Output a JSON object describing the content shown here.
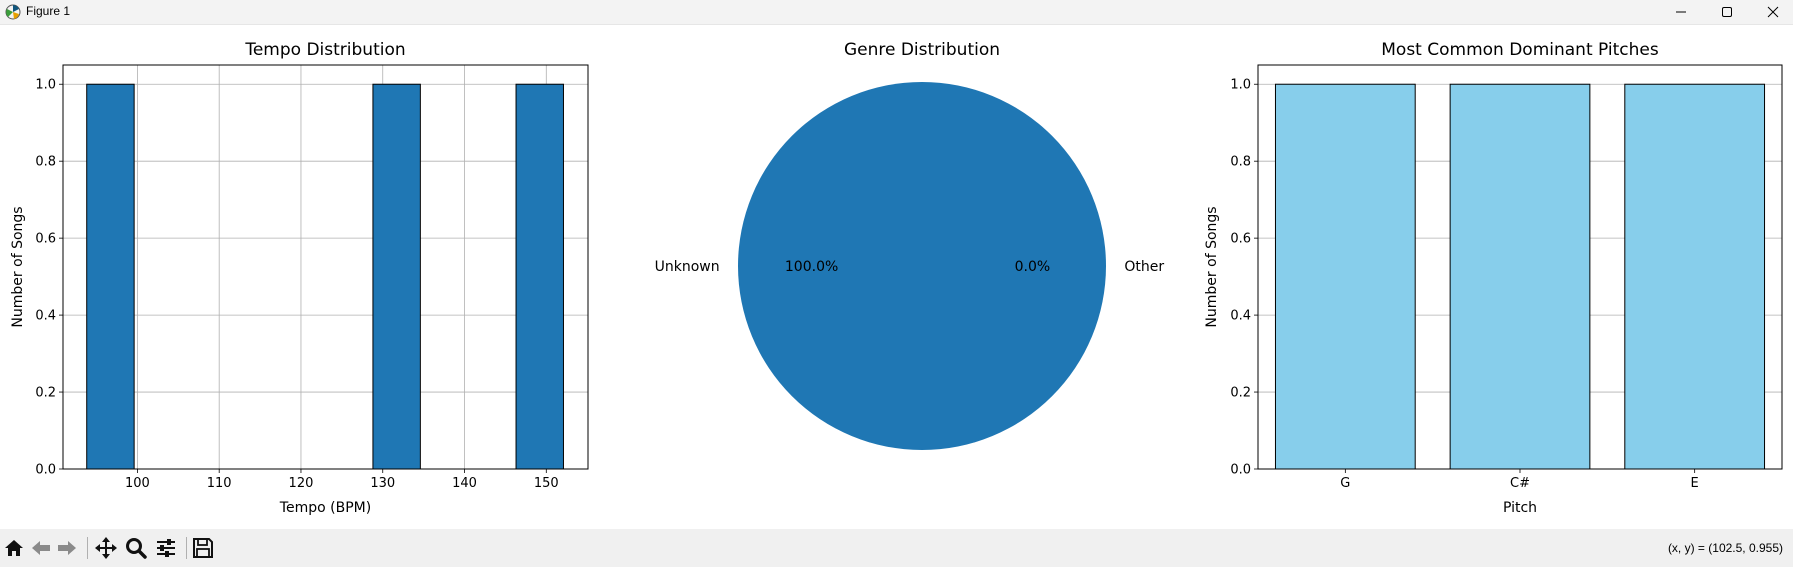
{
  "window": {
    "title": "Figure 1",
    "app_icon": "matplotlib-icon",
    "controls": [
      "minimize-icon",
      "maximize-icon",
      "close-icon"
    ]
  },
  "toolbar": {
    "tools": [
      "home-icon",
      "back-arrow-icon",
      "forward-arrow-icon",
      "pan-move-icon",
      "zoom-magnifier-icon",
      "configure-subplots-icon",
      "save-floppy-icon"
    ],
    "coordinates": "(x, y) = (102.5, 0.955)"
  },
  "chart_data": [
    {
      "type": "bar",
      "title": "Tempo Distribution",
      "xlabel": "Tempo (BPM)",
      "ylabel": "Number of Songs",
      "xlim": [
        90.9,
        155.1
      ],
      "ylim": [
        0,
        1.05
      ],
      "xticks": [
        100,
        110,
        120,
        130,
        140,
        150
      ],
      "yticks": [
        0.0,
        0.2,
        0.4,
        0.6,
        0.8,
        1.0
      ],
      "bins": [
        {
          "start": 93.8,
          "end": 99.6,
          "count": 1
        },
        {
          "start": 128.8,
          "end": 134.6,
          "count": 1
        },
        {
          "start": 146.3,
          "end": 152.1,
          "count": 1
        }
      ],
      "grid": true,
      "color": "#1f77b4",
      "edgecolor": "#000000"
    },
    {
      "type": "pie",
      "title": "Genre Distribution",
      "slices": [
        {
          "label": "Unknown",
          "percent_label": "100.0%",
          "value": 100.0,
          "color": "#1f77b4"
        },
        {
          "label": "Other",
          "percent_label": "0.0%",
          "value": 0.0,
          "color": "#ff7f0e"
        }
      ]
    },
    {
      "type": "bar",
      "title": "Most Common Dominant Pitches",
      "xlabel": "Pitch",
      "ylabel": "Number of Songs",
      "categories": [
        "G",
        "C#",
        "E"
      ],
      "values": [
        1,
        1,
        1
      ],
      "ylim": [
        0,
        1.05
      ],
      "yticks": [
        0.0,
        0.2,
        0.4,
        0.6,
        0.8,
        1.0
      ],
      "grid": true,
      "color": "#87ceeb",
      "edgecolor": "#000000"
    }
  ]
}
